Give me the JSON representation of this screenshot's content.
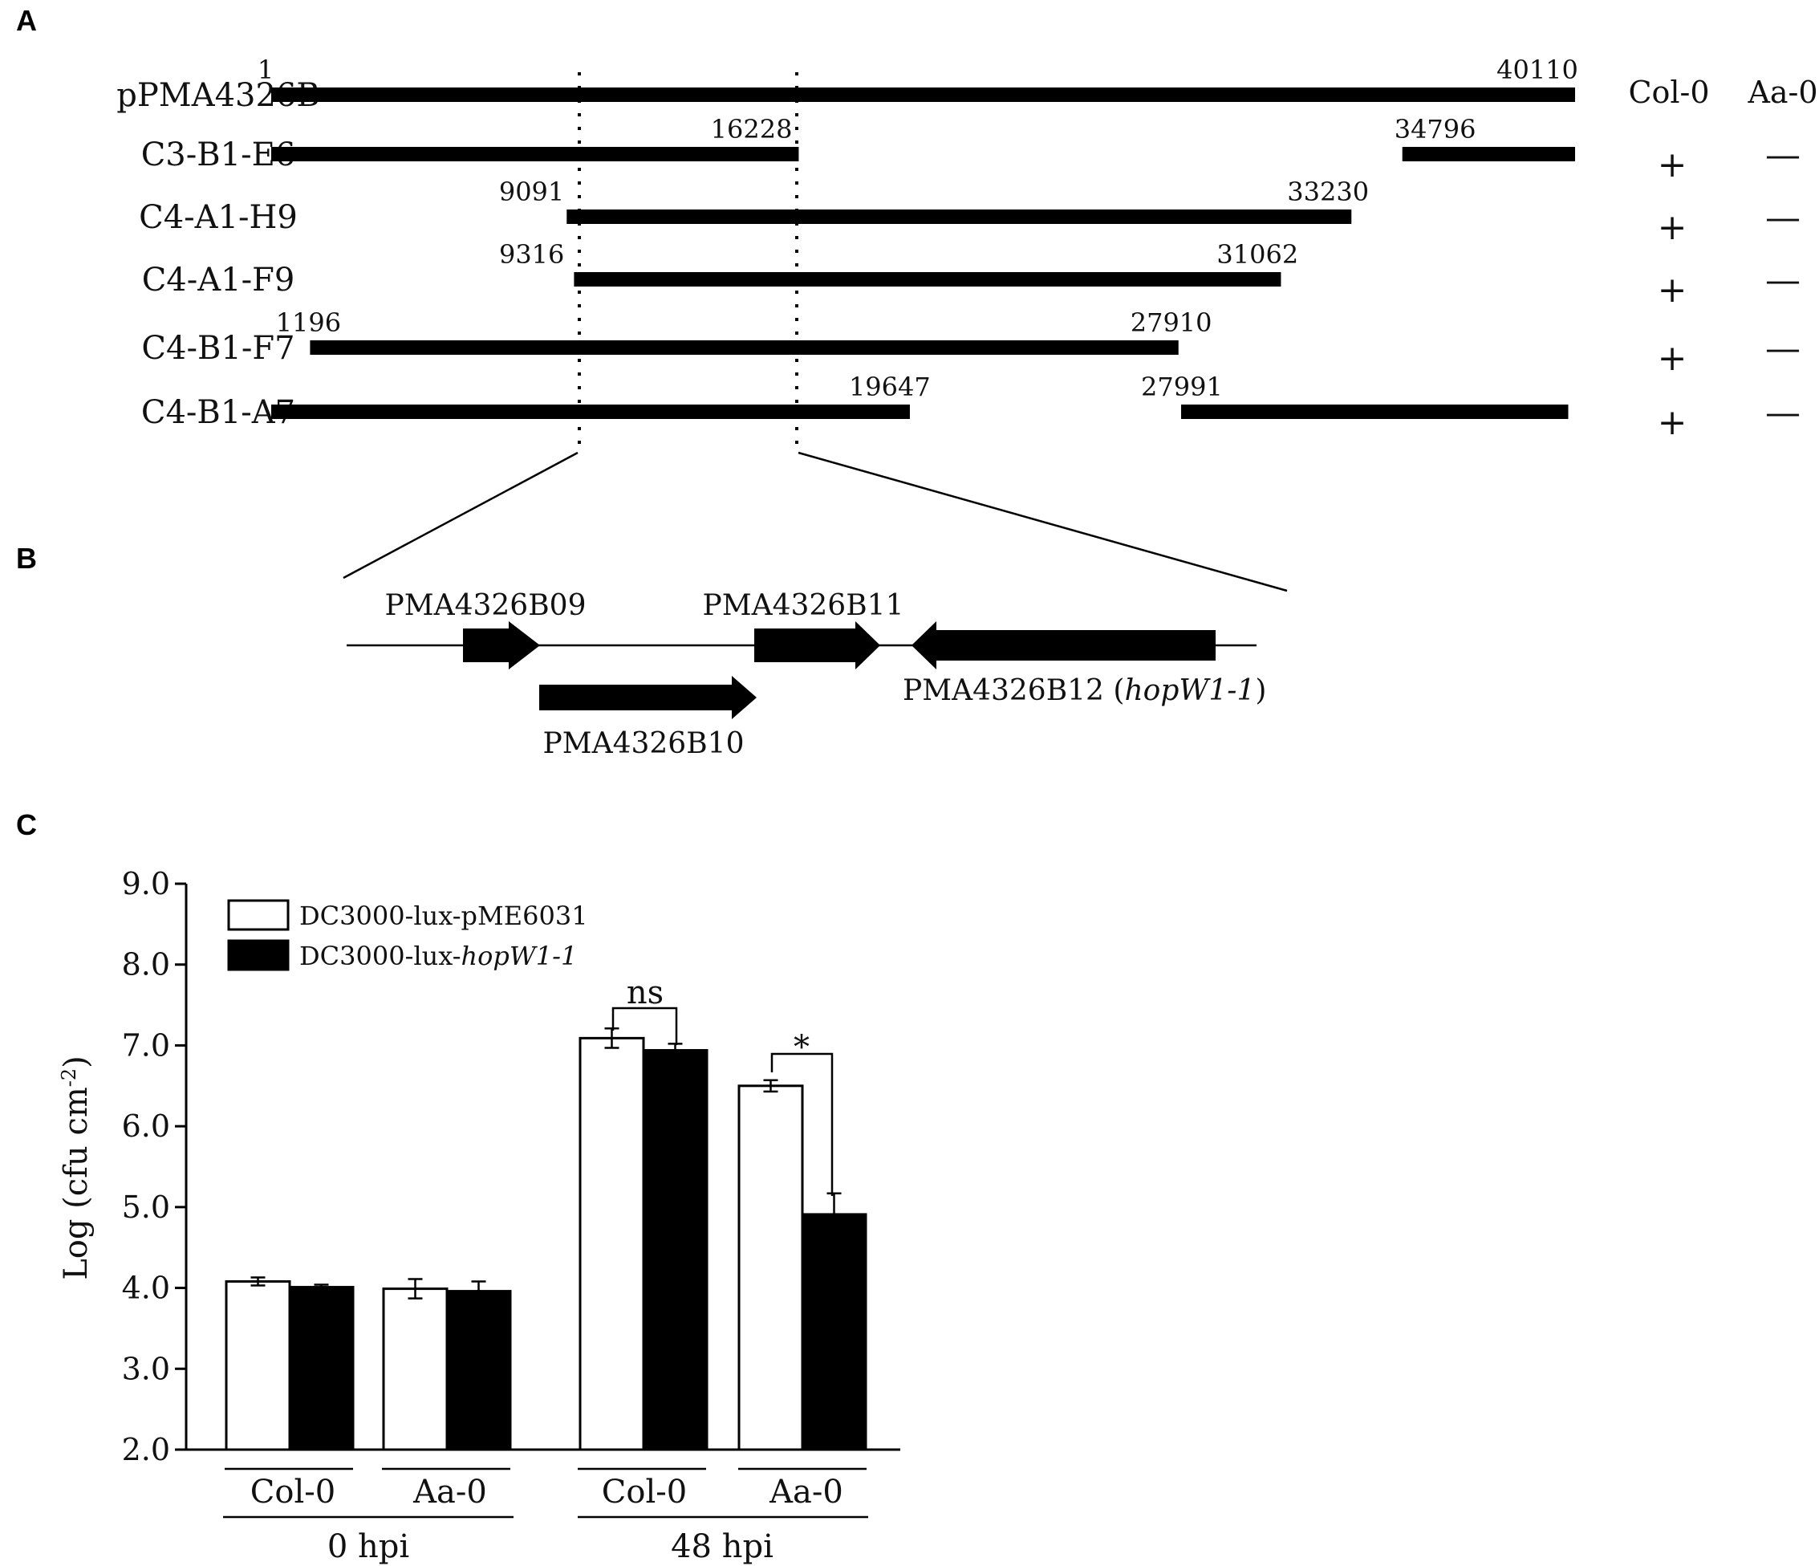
{
  "panels": {
    "a": "A",
    "b": "B",
    "c": "C"
  },
  "panel_a": {
    "col_headers": [
      "Col-0",
      "Aa-0"
    ],
    "clones": [
      {
        "name": "pPMA4326B",
        "segments": [
          [
            1,
            40110
          ]
        ],
        "labels": [
          {
            "text": "1",
            "at": 1
          },
          {
            "text": "40110",
            "at": 40110
          }
        ],
        "col0": "",
        "aa0": ""
      },
      {
        "name": "C3-B1-E6",
        "segments": [
          [
            1,
            16228
          ],
          [
            34796,
            40110
          ]
        ],
        "labels": [
          {
            "text": "16228",
            "at": 16228
          },
          {
            "text": "34796",
            "at": 34796
          }
        ],
        "col0": "+",
        "aa0": "—"
      },
      {
        "name": "C4-A1-H9",
        "segments": [
          [
            9091,
            33230
          ]
        ],
        "labels": [
          {
            "text": "9091",
            "at": 9091
          },
          {
            "text": "33230",
            "at": 33230
          }
        ],
        "col0": "+",
        "aa0": "—"
      },
      {
        "name": "C4-A1-F9",
        "segments": [
          [
            9316,
            31062
          ]
        ],
        "labels": [
          {
            "text": "9316",
            "at": 9316
          },
          {
            "text": "31062",
            "at": 31062
          }
        ],
        "col0": "+",
        "aa0": "—"
      },
      {
        "name": "C4-B1-F7",
        "segments": [
          [
            1196,
            27910
          ]
        ],
        "labels": [
          {
            "text": "1196",
            "at": 1196
          },
          {
            "text": "27910",
            "at": 27910
          }
        ],
        "col0": "+",
        "aa0": "—"
      },
      {
        "name": "C4-B1-A7",
        "segments": [
          [
            1,
            19647
          ],
          [
            27991,
            39900
          ]
        ],
        "labels": [
          {
            "text": "19647",
            "at": 19647
          },
          {
            "text": "27991",
            "at": 27991
          }
        ],
        "col0": "+",
        "aa0": "—"
      }
    ]
  },
  "panel_b": {
    "genes": {
      "b09": "PMA4326B09",
      "b10": "PMA4326B10",
      "b11": "PMA4326B11",
      "b12_prefix": "PMA4326B12 (",
      "b12_italic": "hopW1-1",
      "b12_suffix": ")"
    }
  },
  "chart_data": {
    "type": "bar",
    "ylabel": "Log (cfu cm",
    "ylabel_sup": "-2",
    "ylabel_close": ")",
    "ylim": [
      2.0,
      9.0
    ],
    "yticks": [
      "2.0",
      "3.0",
      "4.0",
      "5.0",
      "6.0",
      "7.0",
      "8.0",
      "9.0"
    ],
    "groups": [
      {
        "label": "0 hpi",
        "categories": [
          "Col-0",
          "Aa-0"
        ]
      },
      {
        "label": "48 hpi",
        "categories": [
          "Col-0",
          "Aa-0"
        ]
      }
    ],
    "categories": [
      "0 hpi Col-0",
      "0 hpi Aa-0",
      "48 hpi Col-0",
      "48 hpi Aa-0"
    ],
    "series": [
      {
        "name": "DC3000-lux-pME6031",
        "fill": "#ffffff",
        "values": [
          4.08,
          3.99,
          7.09,
          6.5
        ],
        "errors": [
          0.05,
          0.12,
          0.12,
          0.07
        ]
      },
      {
        "name_prefix": "DC3000-lux-",
        "name_italic": "hopW1-1",
        "fill": "#000000",
        "values": [
          4.01,
          3.96,
          6.94,
          4.91
        ],
        "errors": [
          0.03,
          0.12,
          0.08,
          0.26
        ]
      }
    ],
    "significance": [
      "ns",
      "*"
    ]
  }
}
